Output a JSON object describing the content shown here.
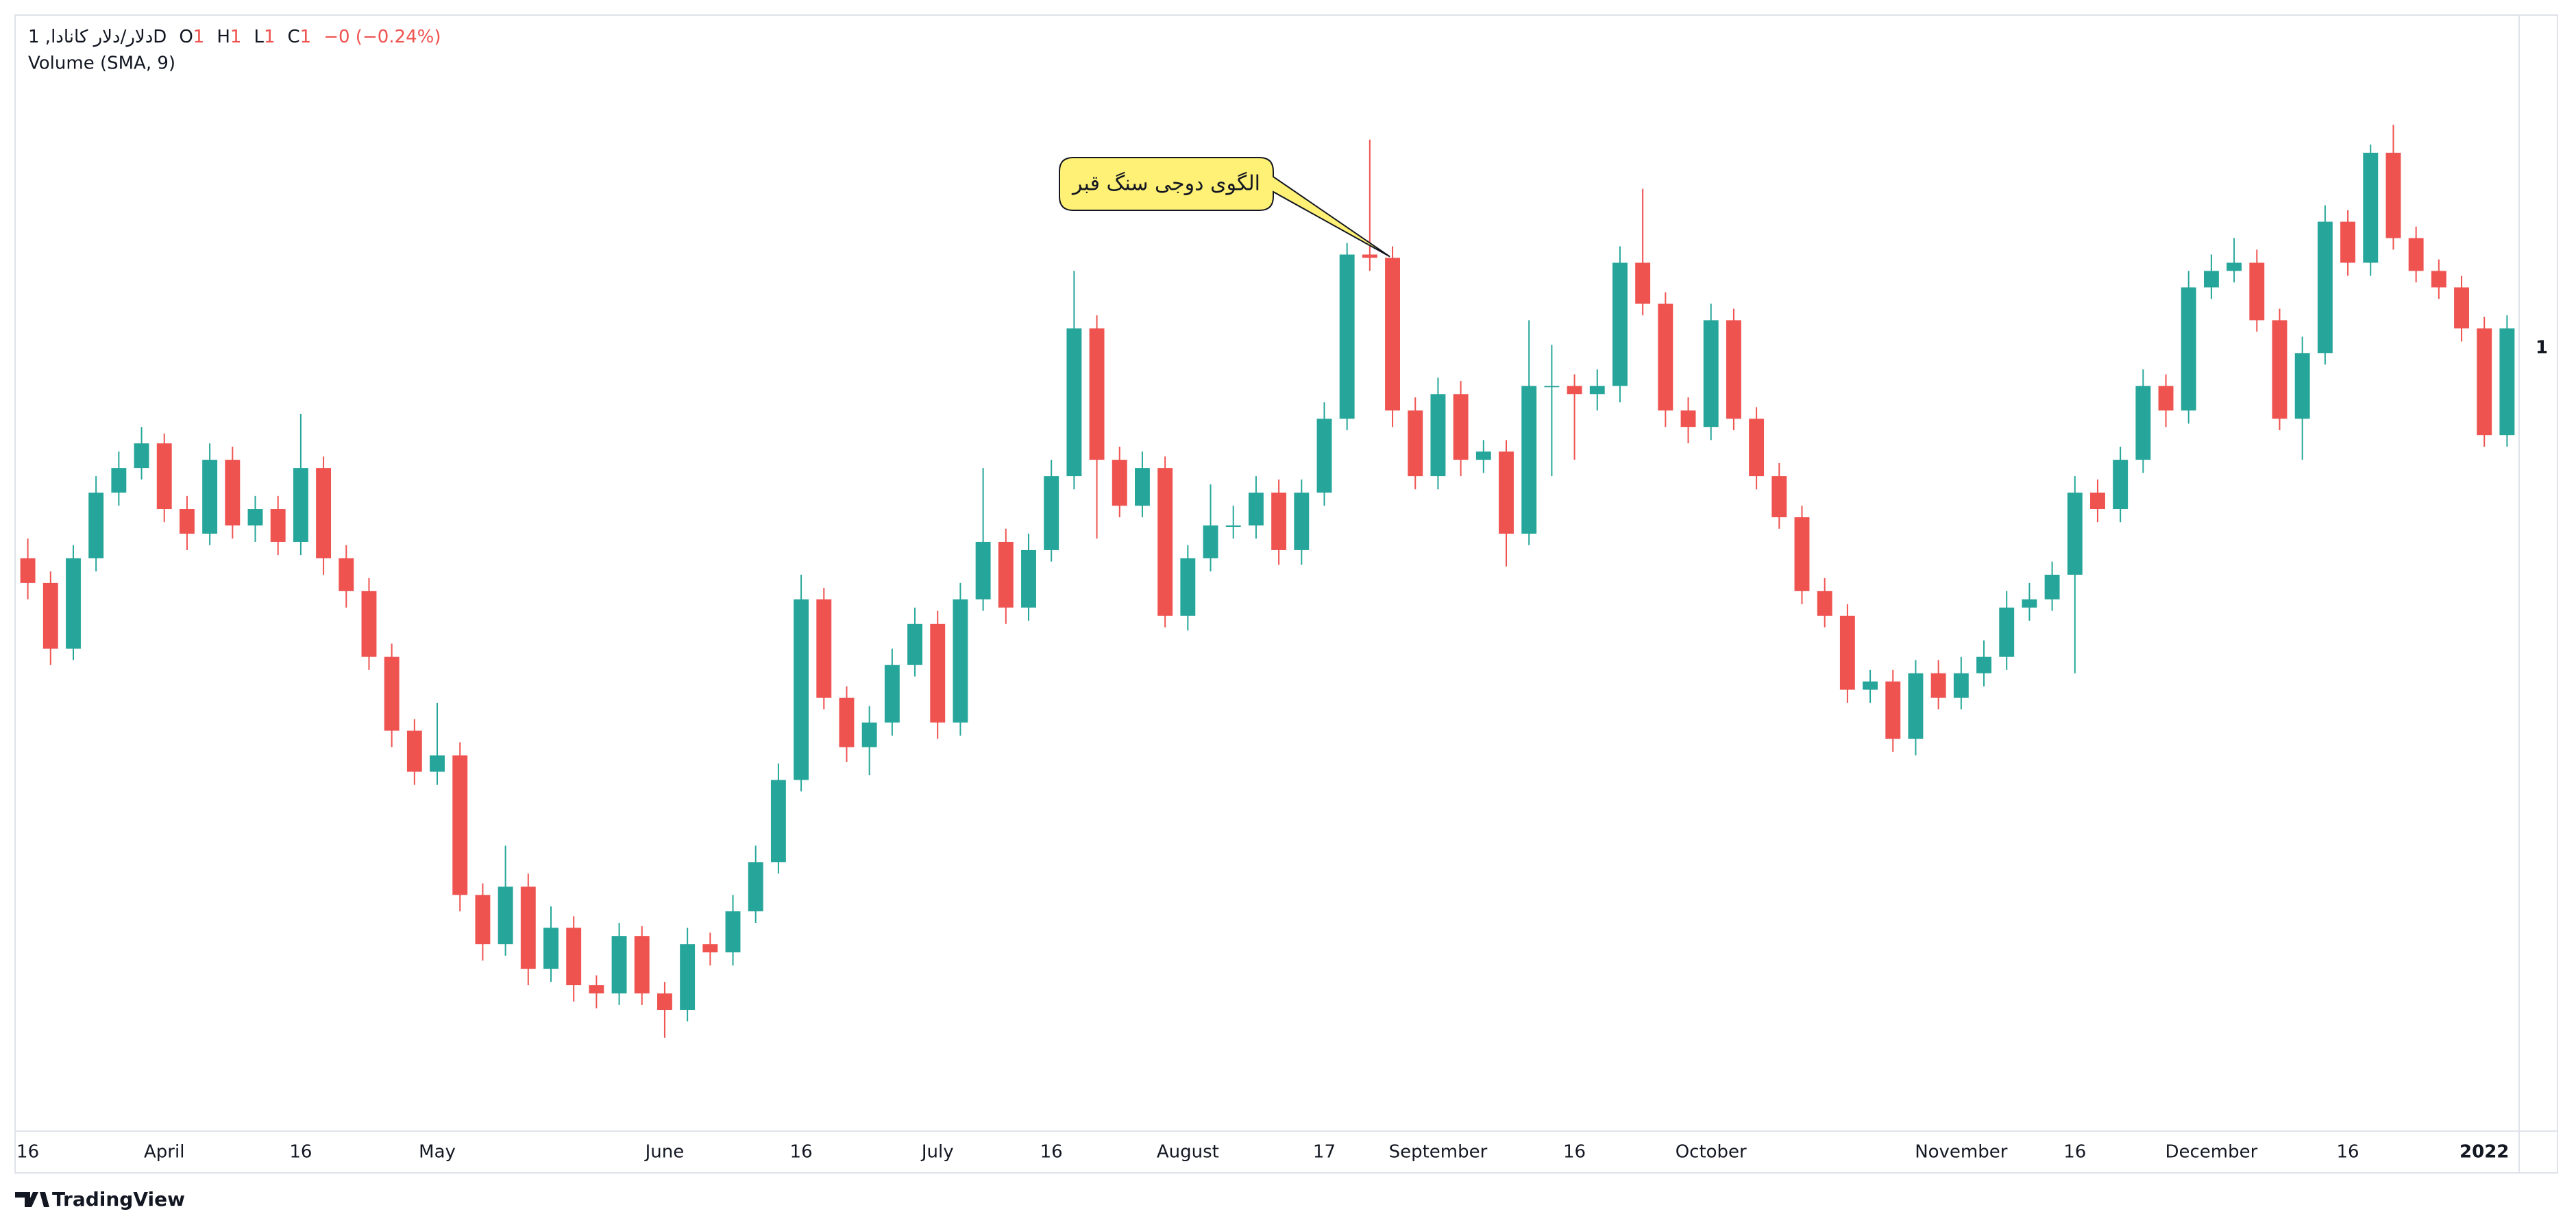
{
  "chart_data": {
    "type": "candlestick",
    "legend": {
      "symbol": "دلار/دلار کانادا, 1D",
      "ohlc": [
        {
          "key": "O",
          "value": "1"
        },
        {
          "key": "H",
          "value": "1"
        },
        {
          "key": "L",
          "value": "1"
        },
        {
          "key": "C",
          "value": "1"
        }
      ],
      "change": "−0 (−0.24%)"
    },
    "indicator": "Volume (SMA, 9)",
    "annotation": "الگوی دوجی سنگ قبر",
    "annotation_at": 60,
    "footer": "TradingView",
    "up_color": "#26a69a",
    "down_color": "#ef5350",
    "ylim": [
      12,
      690
    ],
    "yticks": [
      {
        "value": 488,
        "label": "1"
      }
    ],
    "xticks": [
      {
        "value": 0,
        "label": "16"
      },
      {
        "value": 6,
        "label": "April"
      },
      {
        "value": 12,
        "label": "16"
      },
      {
        "value": 18,
        "label": "May"
      },
      {
        "value": 28,
        "label": "June"
      },
      {
        "value": 34,
        "label": "16"
      },
      {
        "value": 40,
        "label": "July"
      },
      {
        "value": 45,
        "label": "16"
      },
      {
        "value": 51,
        "label": "August"
      },
      {
        "value": 57,
        "label": "17"
      },
      {
        "value": 62,
        "label": "September"
      },
      {
        "value": 68,
        "label": "16"
      },
      {
        "value": 74,
        "label": "October"
      },
      {
        "value": 85,
        "label": "November"
      },
      {
        "value": 90,
        "label": "16"
      },
      {
        "value": 96,
        "label": "December"
      },
      {
        "value": 102,
        "label": "16"
      },
      {
        "value": 108,
        "label": "2022"
      }
    ],
    "candles": [
      [
        360,
        372,
        335,
        345
      ],
      [
        345,
        352,
        295,
        305
      ],
      [
        305,
        368,
        298,
        360
      ],
      [
        360,
        410,
        352,
        400
      ],
      [
        400,
        425,
        392,
        415
      ],
      [
        415,
        440,
        408,
        430
      ],
      [
        430,
        436,
        382,
        390
      ],
      [
        390,
        398,
        365,
        375
      ],
      [
        375,
        430,
        368,
        420
      ],
      [
        420,
        428,
        372,
        380
      ],
      [
        380,
        398,
        370,
        390
      ],
      [
        390,
        398,
        362,
        370
      ],
      [
        370,
        448,
        362,
        415
      ],
      [
        415,
        422,
        350,
        360
      ],
      [
        360,
        368,
        330,
        340
      ],
      [
        340,
        348,
        292,
        300
      ],
      [
        300,
        308,
        245,
        255
      ],
      [
        255,
        262,
        222,
        230
      ],
      [
        230,
        272,
        222,
        240
      ],
      [
        240,
        248,
        145,
        155
      ],
      [
        155,
        162,
        115,
        125
      ],
      [
        125,
        185,
        118,
        160
      ],
      [
        160,
        168,
        100,
        110
      ],
      [
        110,
        148,
        102,
        135
      ],
      [
        135,
        142,
        90,
        100
      ],
      [
        100,
        106,
        86,
        95
      ],
      [
        95,
        138,
        88,
        130
      ],
      [
        130,
        136,
        88,
        95
      ],
      [
        95,
        102,
        68,
        85
      ],
      [
        85,
        135,
        78,
        125
      ],
      [
        125,
        132,
        112,
        120
      ],
      [
        120,
        155,
        112,
        145
      ],
      [
        145,
        185,
        138,
        175
      ],
      [
        175,
        235,
        168,
        225
      ],
      [
        225,
        350,
        218,
        335
      ],
      [
        335,
        342,
        268,
        275
      ],
      [
        275,
        282,
        236,
        245
      ],
      [
        245,
        270,
        228,
        260
      ],
      [
        260,
        305,
        252,
        295
      ],
      [
        295,
        330,
        288,
        320
      ],
      [
        320,
        328,
        250,
        260
      ],
      [
        260,
        345,
        252,
        335
      ],
      [
        335,
        415,
        328,
        370
      ],
      [
        370,
        378,
        320,
        330
      ],
      [
        330,
        375,
        322,
        365
      ],
      [
        365,
        420,
        358,
        410
      ],
      [
        410,
        535,
        402,
        500
      ],
      [
        500,
        508,
        372,
        420
      ],
      [
        420,
        428,
        385,
        392
      ],
      [
        392,
        425,
        385,
        415
      ],
      [
        415,
        422,
        318,
        325
      ],
      [
        325,
        368,
        316,
        360
      ],
      [
        360,
        405,
        352,
        380
      ],
      [
        380,
        392,
        372,
        380
      ],
      [
        380,
        410,
        372,
        400
      ],
      [
        400,
        408,
        356,
        365
      ],
      [
        365,
        408,
        356,
        400
      ],
      [
        400,
        455,
        392,
        445
      ],
      [
        445,
        552,
        438,
        545
      ],
      [
        545,
        615,
        535,
        543
      ],
      [
        543,
        550,
        440,
        450
      ],
      [
        450,
        458,
        402,
        410
      ],
      [
        410,
        470,
        402,
        460
      ],
      [
        460,
        468,
        410,
        420
      ],
      [
        420,
        432,
        412,
        425
      ],
      [
        425,
        432,
        355,
        375
      ],
      [
        375,
        505,
        368,
        465
      ],
      [
        465,
        490,
        410,
        465
      ],
      [
        465,
        472,
        420,
        460
      ],
      [
        460,
        475,
        450,
        465
      ],
      [
        465,
        550,
        455,
        540
      ],
      [
        540,
        585,
        508,
        515
      ],
      [
        515,
        522,
        440,
        450
      ],
      [
        450,
        458,
        430,
        440
      ],
      [
        440,
        515,
        432,
        505
      ],
      [
        505,
        512,
        438,
        445
      ],
      [
        445,
        452,
        402,
        410
      ],
      [
        410,
        418,
        378,
        385
      ],
      [
        385,
        392,
        332,
        340
      ],
      [
        340,
        348,
        318,
        325
      ],
      [
        325,
        332,
        272,
        280
      ],
      [
        280,
        292,
        272,
        285
      ],
      [
        285,
        292,
        242,
        250
      ],
      [
        250,
        298,
        240,
        290
      ],
      [
        290,
        298,
        268,
        275
      ],
      [
        275,
        300,
        268,
        290
      ],
      [
        290,
        310,
        282,
        300
      ],
      [
        300,
        340,
        292,
        330
      ],
      [
        330,
        345,
        322,
        335
      ],
      [
        335,
        358,
        328,
        350
      ],
      [
        350,
        410,
        290,
        400
      ],
      [
        400,
        408,
        382,
        390
      ],
      [
        390,
        428,
        382,
        420
      ],
      [
        420,
        475,
        412,
        465
      ],
      [
        465,
        472,
        440,
        450
      ],
      [
        450,
        535,
        442,
        525
      ],
      [
        525,
        545,
        518,
        535
      ],
      [
        535,
        555,
        528,
        540
      ],
      [
        540,
        548,
        498,
        505
      ],
      [
        505,
        512,
        438,
        445
      ],
      [
        445,
        495,
        420,
        485
      ],
      [
        485,
        575,
        478,
        565
      ],
      [
        565,
        572,
        532,
        540
      ],
      [
        540,
        612,
        532,
        607
      ],
      [
        607,
        624,
        548,
        555
      ],
      [
        555,
        562,
        528,
        535
      ],
      [
        535,
        542,
        518,
        525
      ],
      [
        525,
        532,
        492,
        500
      ],
      [
        500,
        507,
        428,
        435
      ],
      [
        435,
        508,
        428,
        500
      ]
    ]
  }
}
